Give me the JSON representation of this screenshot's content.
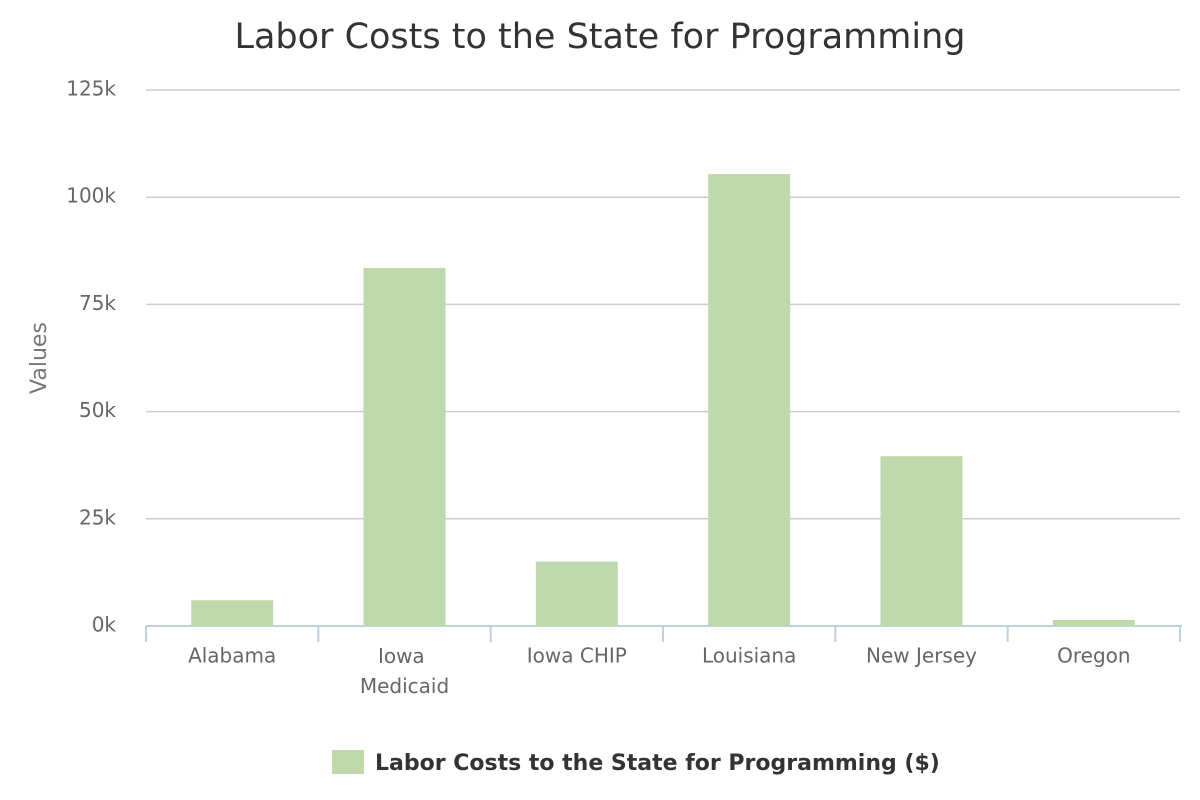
{
  "chart_data": {
    "type": "bar",
    "title": "Labor Costs to the State for Programming",
    "y_label": "Values",
    "categories": [
      "Alabama",
      "Iowa Medicaid",
      "Iowa CHIP",
      "Louisiana",
      "New Jersey",
      "Oregon"
    ],
    "series": [
      {
        "name": "Labor Costs to the State for Programming ($)",
        "color": "#bfd9ad",
        "values": [
          6000,
          83500,
          15000,
          105400,
          39600,
          1400
        ]
      }
    ],
    "ylim": [
      0,
      125000
    ],
    "yticks": [
      {
        "value": 0,
        "label": "0k"
      },
      {
        "value": 25000,
        "label": "25k"
      },
      {
        "value": 50000,
        "label": "50k"
      },
      {
        "value": 75000,
        "label": "75k"
      },
      {
        "value": 100000,
        "label": "100k"
      },
      {
        "value": 125000,
        "label": "125k"
      }
    ],
    "grid": true,
    "legend": "bottom"
  }
}
